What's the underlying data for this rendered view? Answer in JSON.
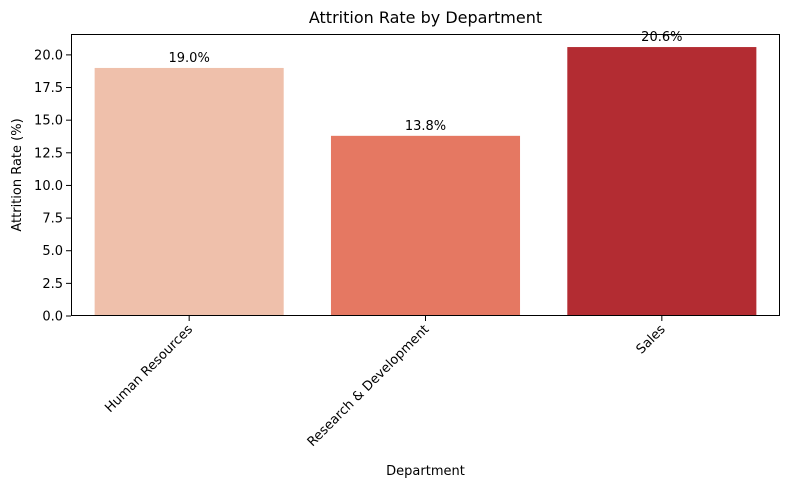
{
  "chart_data": {
    "type": "bar",
    "title": "Attrition Rate by Department",
    "xlabel": "Department",
    "ylabel": "Attrition Rate (%)",
    "categories": [
      "Human Resources",
      "Research & Development",
      "Sales"
    ],
    "values": [
      19.0,
      13.8,
      20.6
    ],
    "data_labels": [
      "19.0%",
      "13.8%",
      "20.6%"
    ],
    "colors": [
      "#efc0ab",
      "#e57862",
      "#b32c32"
    ],
    "ylim": [
      0,
      21.6
    ],
    "yticks": [
      0.0,
      2.5,
      5.0,
      7.5,
      10.0,
      12.5,
      15.0,
      17.5,
      20.0
    ],
    "ytick_labels": [
      "0.0",
      "2.5",
      "5.0",
      "7.5",
      "10.0",
      "12.5",
      "15.0",
      "17.5",
      "20.0"
    ],
    "xtick_rotation_deg": 45,
    "grid": false,
    "legend": "none"
  }
}
